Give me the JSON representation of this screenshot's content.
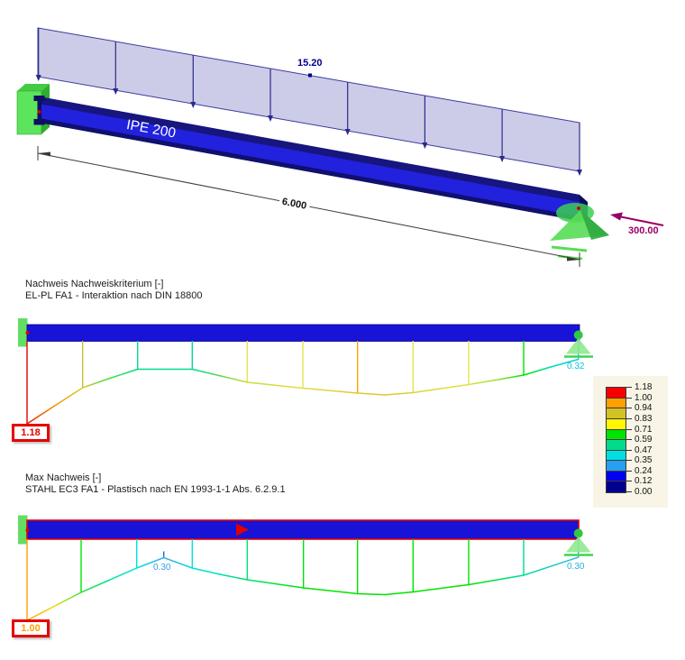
{
  "view3d": {
    "section_label": "IPE 200",
    "distributed_load_value": "15.20",
    "axial_load_value": "300.00",
    "span_dimension": "6.000",
    "load_color": "#00008b",
    "axial_color": "#990066"
  },
  "diagram_el_pl": {
    "title": "Nachweis Nachweiskriterium [-]",
    "subtitle": "EL-PL FA1 - Interaktion nach DIN 18800",
    "max_label": "1.18",
    "right_label": "0.32",
    "vlines": [
      [
        91.7,
        378,
        430,
        "#cdbe2e"
      ],
      [
        152.7,
        378,
        409.5,
        "#00dc8c"
      ],
      [
        213.3,
        378,
        409.5,
        "#00dc8c"
      ],
      [
        274.3,
        378,
        424,
        "#e6e44e"
      ],
      [
        336,
        378,
        430.5,
        "#e6e44e"
      ],
      [
        396.7,
        378,
        436,
        "#ffa000"
      ],
      [
        458.3,
        378,
        435.5,
        "#e6e44e"
      ],
      [
        520,
        378,
        426.5,
        "#e6e44e"
      ],
      [
        581,
        378,
        416,
        "#00e400"
      ]
    ],
    "endlines": [
      [
        30,
        378,
        470,
        "#e30000"
      ],
      [
        641.7,
        378,
        398.5,
        "#00cce8"
      ]
    ],
    "curve": [
      [
        30,
        470,
        60,
        450.5,
        "#ee1000",
        "#f59000"
      ],
      [
        60,
        450.5,
        91.7,
        430,
        "#f59000",
        "#d8cc30"
      ],
      [
        91.7,
        430,
        122,
        419.5,
        "#d8cc30",
        "#3ce23c"
      ],
      [
        122,
        419.5,
        152.7,
        409.5,
        "#3ce23c",
        "#00dc8c"
      ],
      [
        152.7,
        409.5,
        213.3,
        409.5,
        "#00dc8c",
        "#00dc8c"
      ],
      [
        213.3,
        409.5,
        245,
        417,
        "#00dc8c",
        "#55dc55"
      ],
      [
        245,
        417,
        274.3,
        424,
        "#55dc55",
        "#cadc3c"
      ],
      [
        274.3,
        424,
        336,
        430.5,
        "#cadc3c",
        "#e2dc3c"
      ],
      [
        336,
        430.5,
        396.7,
        436,
        "#e2dc3c",
        "#dccc34"
      ],
      [
        396.7,
        436,
        427,
        438,
        "#dccc34",
        "#d8c830"
      ],
      [
        427,
        438,
        458.3,
        435.5,
        "#d8c830",
        "#dcd438"
      ],
      [
        458.3,
        435.5,
        520,
        426.5,
        "#dcd438",
        "#e2e040"
      ],
      [
        520,
        426.5,
        550,
        421.5,
        "#e2e040",
        "#9be040"
      ],
      [
        550,
        421.5,
        581,
        416,
        "#9be040",
        "#00e400"
      ],
      [
        581,
        416,
        611,
        407,
        "#00e400",
        "#00dcb4"
      ],
      [
        611,
        407,
        641.7,
        398.5,
        "#00dcb4",
        "#00cce8"
      ]
    ]
  },
  "diagram_ec3": {
    "title": "Max Nachweis [-]",
    "subtitle": "STAHL EC3 FA1 - Plastisch nach EN 1993-1-1 Abs. 6.2.9.1",
    "max_label": "1.00",
    "peak_label": "0.30",
    "right_label": "0.30",
    "vlines": [
      [
        90,
        598,
        657,
        "#00e400"
      ],
      [
        151.7,
        598,
        630,
        "#00e0e0"
      ],
      [
        213.3,
        598,
        630,
        "#00e0e0"
      ],
      [
        274.3,
        598,
        643,
        "#00e46e"
      ],
      [
        336.7,
        598,
        652,
        "#00e400"
      ],
      [
        396.7,
        598,
        658.5,
        "#00e400"
      ],
      [
        458.3,
        598,
        656.5,
        "#00e400"
      ],
      [
        520,
        598,
        648.5,
        "#00e400"
      ],
      [
        581,
        598,
        638,
        "#00dc96"
      ]
    ],
    "endlines": [
      [
        30,
        598,
        688,
        "#ffa000"
      ],
      [
        641.7,
        598,
        618,
        "#30b6e8"
      ],
      [
        181.7,
        611.5,
        618.5,
        "#1070e0"
      ]
    ],
    "curve": [
      [
        30,
        688,
        60,
        672.5,
        "#ffa000",
        "#eed800"
      ],
      [
        60,
        672.5,
        90,
        657,
        "#eed800",
        "#3ce23c"
      ],
      [
        90,
        657,
        121,
        643.5,
        "#3ce23c",
        "#00e0a0"
      ],
      [
        121,
        643.5,
        151.7,
        630,
        "#00e0a0",
        "#00e0e0"
      ],
      [
        151.7,
        630,
        181.7,
        618.5,
        "#00e0e0",
        "#46aae8"
      ],
      [
        181.7,
        618.5,
        213.3,
        630,
        "#46aae8",
        "#00e0e0"
      ],
      [
        213.3,
        630,
        244,
        637,
        "#00e0e0",
        "#00e0b4"
      ],
      [
        244,
        637,
        274.3,
        643,
        "#00e0b4",
        "#00e06e"
      ],
      [
        274.3,
        643,
        336.7,
        652,
        "#00e06e",
        "#00e400"
      ],
      [
        336.7,
        652,
        396.7,
        658.5,
        "#00e400",
        "#00e400"
      ],
      [
        396.7,
        658.5,
        427,
        659.5,
        "#00e400",
        "#00e400"
      ],
      [
        427,
        659.5,
        458.3,
        656.5,
        "#00e400",
        "#00e400"
      ],
      [
        458.3,
        656.5,
        520,
        648.5,
        "#00e400",
        "#00e400"
      ],
      [
        520,
        648.5,
        581,
        638,
        "#00e400",
        "#00dc96"
      ],
      [
        581,
        638,
        641.7,
        618,
        "#00dc96",
        "#30b6e8"
      ]
    ]
  },
  "legend": {
    "values": [
      "1.18",
      "1.00",
      "0.94",
      "0.83",
      "0.71",
      "0.59",
      "0.47",
      "0.35",
      "0.24",
      "0.12",
      "0.00"
    ],
    "colors": [
      "#f80000",
      "#ffa000",
      "#d2c228",
      "#fff600",
      "#00e400",
      "#00dc8c",
      "#00e0e0",
      "#28a0f0",
      "#0000f0",
      "#000090"
    ],
    "background": "#f8f4e6"
  }
}
